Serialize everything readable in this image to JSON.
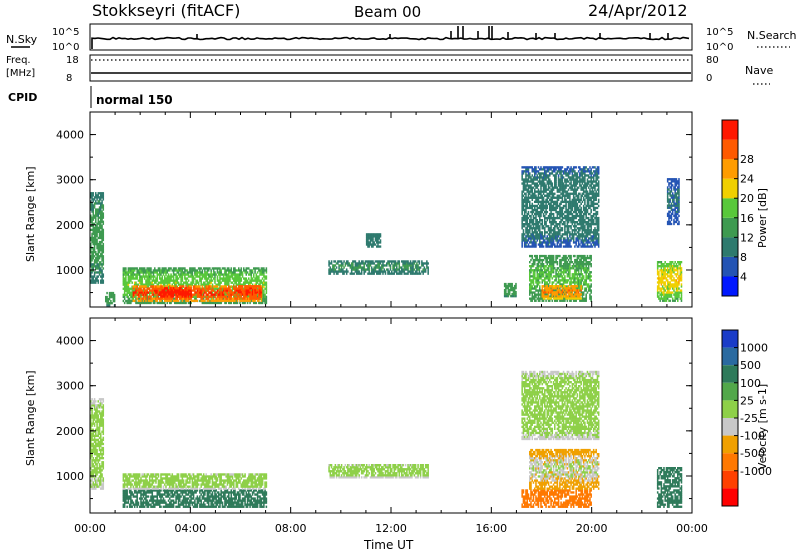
{
  "header": {
    "title": "Stokkseyri (fitACF)",
    "beam": "Beam 00",
    "date": "24/Apr/2012"
  },
  "summary": {
    "nsky_label": "N.Sky",
    "nsearch_label": "N.Search",
    "nsky_ticks": [
      "10^5",
      "10^0"
    ],
    "nsearch_ticks": [
      "10^5",
      "10^0"
    ],
    "freq_label_1": "Freq.",
    "freq_label_2": "[MHz]",
    "freq_ticks": [
      "18",
      "8"
    ],
    "nave_label": "Nave",
    "nave_ticks": [
      "80",
      "0"
    ],
    "cpid_label": "CPID",
    "cpid_value": "normal 150"
  },
  "chart_data": [
    {
      "type": "heatmap",
      "panel": "power",
      "ylabel": "Slant Range [km]",
      "xlabel": "",
      "ylim": [
        180,
        4500
      ],
      "yticks": [
        1000,
        2000,
        3000,
        4000
      ],
      "xlim": [
        0,
        24
      ],
      "colorbar_label": "Power [dB]",
      "colorbar_ticks": [
        "4",
        "8",
        "12",
        "16",
        "20",
        "24",
        "28"
      ],
      "colorbar_colors": [
        "#0018ff",
        "#2454b4",
        "#2e7a6e",
        "#3e9a50",
        "#58c83a",
        "#f0d000",
        "#ff9c00",
        "#ff5a00",
        "#ff1800"
      ],
      "regions": [
        {
          "t0": 0.0,
          "t1": 0.5,
          "r0": 700,
          "r1": 2700,
          "v0": 5,
          "v1": 14
        },
        {
          "t0": 0.6,
          "t1": 1.0,
          "r0": 200,
          "r1": 500,
          "v0": 8,
          "v1": 14
        },
        {
          "t0": 1.3,
          "t1": 7.0,
          "r0": 250,
          "r1": 1050,
          "v0": 8,
          "v1": 18
        },
        {
          "t0": 1.7,
          "t1": 6.8,
          "r0": 300,
          "r1": 650,
          "v0": 18,
          "v1": 30
        },
        {
          "t0": 2.8,
          "t1": 4.0,
          "r0": 350,
          "r1": 600,
          "v0": 24,
          "v1": 32
        },
        {
          "t0": 5.9,
          "t1": 6.8,
          "r0": 350,
          "r1": 650,
          "v0": 22,
          "v1": 30
        },
        {
          "t0": 9.5,
          "t1": 13.5,
          "r0": 900,
          "r1": 1200,
          "v0": 6,
          "v1": 12
        },
        {
          "t0": 11.0,
          "t1": 11.6,
          "r0": 1500,
          "r1": 1800,
          "v0": 6,
          "v1": 10
        },
        {
          "t0": 16.5,
          "t1": 17.0,
          "r0": 400,
          "r1": 700,
          "v0": 8,
          "v1": 14
        },
        {
          "t0": 17.5,
          "t1": 20.0,
          "r0": 300,
          "r1": 1300,
          "v0": 8,
          "v1": 16
        },
        {
          "t0": 18.0,
          "t1": 19.6,
          "r0": 350,
          "r1": 650,
          "v0": 16,
          "v1": 26
        },
        {
          "t0": 17.2,
          "t1": 20.3,
          "r0": 1500,
          "r1": 3300,
          "v0": 4,
          "v1": 10
        },
        {
          "t0": 22.6,
          "t1": 23.6,
          "r0": 300,
          "r1": 1200,
          "v0": 8,
          "v1": 22
        },
        {
          "t0": 23.0,
          "t1": 23.5,
          "r0": 2000,
          "r1": 3000,
          "v0": 4,
          "v1": 8
        }
      ]
    },
    {
      "type": "heatmap",
      "panel": "velocity",
      "ylabel": "Slant Range [km]",
      "xlabel": "Time UT",
      "ylim": [
        180,
        4500
      ],
      "yticks": [
        1000,
        2000,
        3000,
        4000
      ],
      "xlim": [
        0,
        24
      ],
      "xticks": [
        "00:00",
        "04:00",
        "08:00",
        "12:00",
        "16:00",
        "20:00",
        "00:00"
      ],
      "colorbar_label": "Velocity [m s-1]",
      "colorbar_ticks": [
        "1000",
        "500",
        "100",
        "25",
        "-25",
        "-100",
        "-500",
        "-1000"
      ],
      "colorbar_colors": [
        "#1a3cc8",
        "#2a6aa0",
        "#2e7a5a",
        "#52a84a",
        "#8ed048",
        "#c8c8c8",
        "#f0a000",
        "#ff7800",
        "#ff4000",
        "#ff0000"
      ],
      "regions": [
        {
          "t0": 0.0,
          "t1": 0.5,
          "r0": 700,
          "r1": 2700,
          "v0": -25,
          "v1": 25
        },
        {
          "t0": 1.3,
          "t1": 7.0,
          "r0": 300,
          "r1": 700,
          "v0": 50,
          "v1": 400
        },
        {
          "t0": 1.3,
          "t1": 7.0,
          "r0": 700,
          "r1": 1050,
          "v0": -20,
          "v1": 20
        },
        {
          "t0": 9.5,
          "t1": 13.5,
          "r0": 950,
          "r1": 1250,
          "v0": -20,
          "v1": 20
        },
        {
          "t0": 17.2,
          "t1": 20.0,
          "r0": 300,
          "r1": 700,
          "v0": -300,
          "v1": -100
        },
        {
          "t0": 17.5,
          "t1": 20.3,
          "r0": 700,
          "r1": 1600,
          "v0": -150,
          "v1": 25
        },
        {
          "t0": 17.2,
          "t1": 20.3,
          "r0": 1800,
          "r1": 3300,
          "v0": -20,
          "v1": 20
        },
        {
          "t0": 22.6,
          "t1": 23.6,
          "r0": 300,
          "r1": 1200,
          "v0": 30,
          "v1": 300
        }
      ]
    }
  ]
}
